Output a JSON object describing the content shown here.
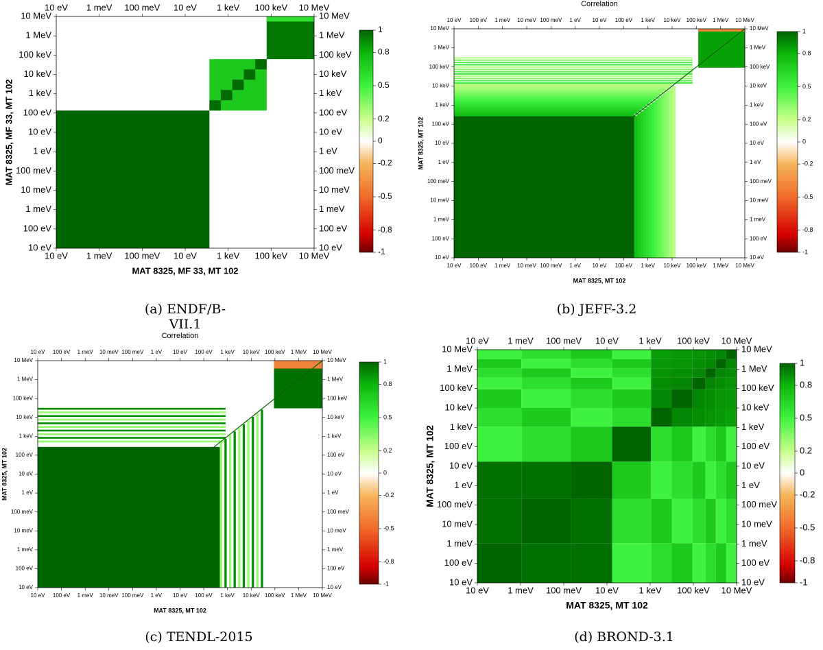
{
  "chart_data": [
    {
      "type": "heatmap",
      "title": "",
      "caption": "(a) ENDF/B-VII.1",
      "xlabel": "MAT 8325, MF 33, MT 102",
      "ylabel": "MAT 8325, MF 33, MT 102",
      "x_top_ticks": [
        "10  eV",
        "1 meV",
        "100 meV",
        "10 eV",
        "1 keV",
        "100 keV",
        "10 MeV"
      ],
      "x_bottom_ticks": [
        "10  eV",
        "1 meV",
        "100 meV",
        "10 eV",
        "1 keV",
        "100 keV",
        "10 MeV"
      ],
      "y_ticks": [
        "10 MeV",
        "1 MeV",
        "100 keV",
        "10 keV",
        "1 keV",
        "100 eV",
        "10 eV",
        "1 eV",
        "100 meV",
        "10 meV",
        "1 meV",
        "100  eV",
        "10  eV"
      ],
      "colorbar_ticks": [
        "1",
        "0.8",
        "0.5",
        "0.2",
        "0",
        "-0.2",
        "-0.5",
        "-0.8",
        "-1"
      ],
      "zlim": [
        -1,
        1
      ],
      "blocks": [
        {
          "from": 0.0,
          "to": 0.594,
          "value": 1.0
        },
        {
          "from": 0.594,
          "to": 0.816,
          "value": 0.7
        },
        {
          "from": 0.816,
          "to": 1.0,
          "value": 0.95
        }
      ]
    },
    {
      "type": "heatmap",
      "title": "Correlation",
      "caption": "(b) JEFF-3.2",
      "xlabel": "MAT 8325, MT 102",
      "ylabel": "MAT 8325, MT 102",
      "x_top_ticks": [
        "10  eV",
        "100  eV",
        "1 meV",
        "10 meV",
        "100 meV",
        "1 eV",
        "10 eV",
        "100 eV",
        "1 keV",
        "10 keV",
        "100 keV",
        "1 MeV",
        "10 MeV"
      ],
      "x_bottom_ticks": [
        "10  eV",
        "100  eV",
        "1 meV",
        "10 meV",
        "100 meV",
        "1 eV",
        "10 eV",
        "100 eV",
        "1 keV",
        "10 keV",
        "100 keV",
        "1 MeV",
        "10 MeV"
      ],
      "y_ticks": [
        "10 MeV",
        "1 MeV",
        "100 keV",
        "10 keV",
        "1 keV",
        "100 eV",
        "10 eV",
        "1 eV",
        "100 meV",
        "10 meV",
        "1 meV",
        "100  eV",
        "10  eV"
      ],
      "colorbar_ticks": [
        "1",
        "0.8",
        "0.5",
        "0.2",
        "0",
        "-0.2",
        "-0.5",
        "-0.8",
        "-1"
      ],
      "zlim": [
        -1,
        1
      ]
    },
    {
      "type": "heatmap",
      "title": "Correlation",
      "caption": "(c) TENDL-2015",
      "xlabel": "MAT 8325, MT 102",
      "ylabel": "MAT 8325, MT 102",
      "x_top_ticks": [
        "10  eV",
        "100  eV",
        "1 meV",
        "10 meV",
        "100 meV",
        "1 eV",
        "10 eV",
        "100 eV",
        "1 keV",
        "10 keV",
        "100 keV",
        "1 MeV",
        "10 MeV"
      ],
      "x_bottom_ticks": [
        "10  eV",
        "100  eV",
        "1 meV",
        "10 meV",
        "100 meV",
        "1 eV",
        "10 eV",
        "100 eV",
        "1 keV",
        "10 keV",
        "100 keV",
        "1 MeV",
        "10 MeV"
      ],
      "y_ticks": [
        "10 MeV",
        "1 MeV",
        "100 keV",
        "10 keV",
        "1 keV",
        "100 eV",
        "10 eV",
        "1 eV",
        "100 meV",
        "10 meV",
        "1 meV",
        "100  eV",
        "10  eV"
      ],
      "colorbar_ticks": [
        "1",
        "0.8",
        "0.5",
        "0.2",
        "0",
        "-0.2",
        "-0.5",
        "-0.8",
        "-1"
      ],
      "zlim": [
        -1,
        1
      ]
    },
    {
      "type": "heatmap",
      "title": "",
      "caption": "(d) BROND-3.1",
      "xlabel": "MAT 8325, MT 102",
      "ylabel": "MAT 8325, MT 102",
      "x_top_ticks": [
        "10  eV",
        "1 meV",
        "100 meV",
        "10 eV",
        "1 keV",
        "100 keV",
        "10 MeV"
      ],
      "x_bottom_ticks": [
        "10  eV",
        "1 meV",
        "100 meV",
        "10 eV",
        "1 keV",
        "100 keV",
        "10 MeV"
      ],
      "y_ticks": [
        "10 MeV",
        "1 MeV",
        "100 keV",
        "10 keV",
        "1 keV",
        "100 eV",
        "10 eV",
        "1 eV",
        "100 meV",
        "10 meV",
        "1 meV",
        "100  eV",
        "10  eV"
      ],
      "colorbar_ticks": [
        "1",
        "0.8",
        "0.5",
        "0.2",
        "0",
        "-0.2",
        "-0.5",
        "-0.8",
        "-1"
      ],
      "zlim": [
        -1,
        1
      ]
    }
  ]
}
